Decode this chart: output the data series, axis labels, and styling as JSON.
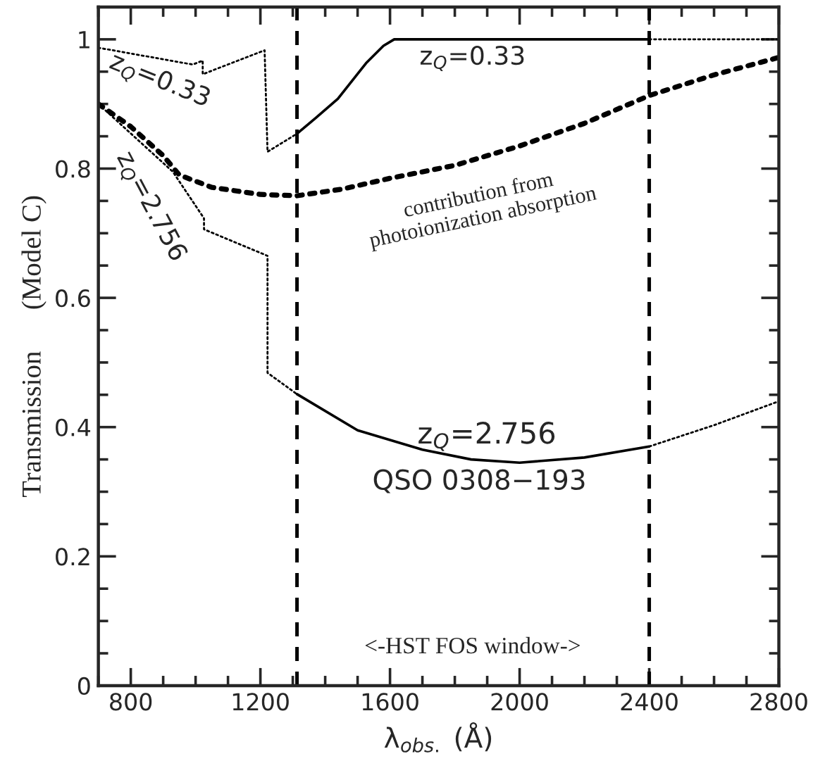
{
  "chart_data": {
    "type": "line",
    "xlabel": "λ$_{obs.}$ (Å)",
    "ylabel": "Transmission      (Model C)",
    "xlim": [
      700,
      2800
    ],
    "xticks": [
      800,
      1200,
      1600,
      2000,
      2400,
      2800
    ],
    "ylim": [
      0,
      1.05
    ],
    "yticks": [
      0,
      0.2,
      0.4,
      0.6,
      0.8,
      1
    ],
    "series": [
      {
        "color": "#000000",
        "line_style": "dotted",
        "x": [
          700,
          991,
          1022,
          1022,
          1213,
          1222,
          1313
        ],
        "values": [
          0.987,
          0.961,
          0.967,
          0.946,
          0.983,
          0.826,
          0.854
        ]
      },
      {
        "color": "#000000",
        "line_style": "solid",
        "x": [
          1313,
          1370,
          1439,
          1526,
          1580,
          1613,
          2400
        ],
        "values": [
          0.854,
          0.878,
          0.908,
          0.963,
          0.99,
          1.0,
          1.0
        ]
      },
      {
        "color": "#000000",
        "line_style": "dotted",
        "x": [
          2400,
          2800
        ],
        "values": [
          1.0,
          1.0
        ]
      },
      {
        "color": "#000000",
        "line_style": "dotted",
        "x": [
          700,
          930,
          1026,
          1026,
          1222,
          1222,
          1313
        ],
        "values": [
          0.9,
          0.795,
          0.723,
          0.706,
          0.665,
          0.484,
          0.451
        ]
      },
      {
        "color": "#000000",
        "line_style": "solid",
        "x": [
          1313,
          1500,
          1700,
          1850,
          2000,
          2200,
          2400
        ],
        "values": [
          0.451,
          0.395,
          0.365,
          0.35,
          0.345,
          0.353,
          0.37
        ]
      },
      {
        "color": "#000000",
        "line_style": "dotted",
        "x": [
          2400,
          2600,
          2800
        ],
        "values": [
          0.37,
          0.403,
          0.44
        ]
      },
      {
        "color": "#000000",
        "line_style": "dotted",
        "x": [
          700,
          800,
          900,
          950,
          1050,
          1200,
          1313,
          1450,
          1600,
          1800,
          2000,
          2200,
          2400,
          2600,
          2800
        ],
        "values": [
          0.9,
          0.865,
          0.82,
          0.79,
          0.771,
          0.76,
          0.758,
          0.768,
          0.785,
          0.805,
          0.835,
          0.87,
          0.913,
          0.945,
          0.972
        ]
      }
    ],
    "ref_lines": [
      {
        "axis": "x",
        "value": 1313,
        "color": "#000000",
        "line_style": "dashed"
      },
      {
        "axis": "x",
        "value": 2400,
        "color": "#000000",
        "line_style": "dashed"
      }
    ],
    "annotations": [
      "z$_{Q}$=0.33",
      "z$_{Q}$=0.33",
      "z$_{Q}$=2.756",
      "contribution from\nphotoionization absorption",
      "z$_{Q}$=2.756",
      "QSO 0308−193",
      "<-HST FOS window->"
    ]
  }
}
